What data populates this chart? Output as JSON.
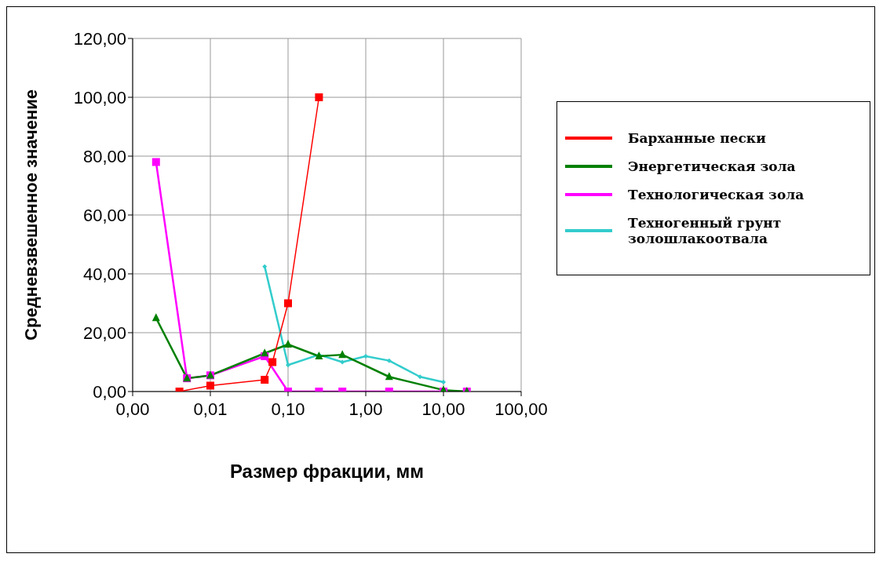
{
  "chart_data": {
    "type": "line",
    "xlabel": "Размер фракции, мм",
    "ylabel": "Средневзвешенное значение",
    "log": "x",
    "xlim": [
      0.001,
      100
    ],
    "xticks": [
      {
        "value": 0.001,
        "label": "0,00"
      },
      {
        "value": 0.01,
        "label": "0,01"
      },
      {
        "value": 0.1,
        "label": "0,10"
      },
      {
        "value": 1,
        "label": "1,00"
      },
      {
        "value": 10,
        "label": "10,00"
      },
      {
        "value": 100,
        "label": "100,00"
      }
    ],
    "ylim": [
      0,
      120
    ],
    "yticks": [
      {
        "value": 0,
        "label": "0,00"
      },
      {
        "value": 20,
        "label": "20,00"
      },
      {
        "value": 40,
        "label": "40,00"
      },
      {
        "value": 60,
        "label": "60,00"
      },
      {
        "value": 80,
        "label": "80,00"
      },
      {
        "value": 100,
        "label": "100,00"
      },
      {
        "value": 120,
        "label": "120,00"
      }
    ],
    "grid": true,
    "legend": "right",
    "series": [
      {
        "name": "Барханные пески",
        "color": "#ff0000",
        "marker": "square",
        "x": [
          0.004,
          0.01,
          0.05,
          0.063,
          0.1,
          0.25
        ],
        "values": [
          0,
          2,
          4,
          10,
          30,
          100
        ]
      },
      {
        "name": "Энергетическая зола",
        "color": "#008000",
        "marker": "triangle",
        "x": [
          0.002,
          0.005,
          0.01,
          0.05,
          0.1,
          0.25,
          0.5,
          2,
          10,
          20
        ],
        "values": [
          25,
          4.5,
          5.5,
          13,
          16,
          12,
          12.5,
          5,
          0.5,
          0
        ]
      },
      {
        "name": "Технологическая зола",
        "color": "#ff00ff",
        "marker": "square",
        "x": [
          0.002,
          0.005,
          0.01,
          0.05,
          0.1,
          0.25,
          0.5,
          2,
          10,
          20
        ],
        "values": [
          78,
          4.5,
          5.5,
          12,
          0,
          0,
          0,
          0,
          0,
          0
        ]
      },
      {
        "name": "Техногенный грунт золошлакоотвала",
        "color": "#33cccc",
        "marker": "diamond",
        "x": [
          0.05,
          0.1,
          0.25,
          0.5,
          1,
          2,
          5,
          10
        ],
        "values": [
          42.5,
          9,
          12.5,
          10,
          12,
          10.5,
          5,
          3.2
        ]
      }
    ]
  }
}
